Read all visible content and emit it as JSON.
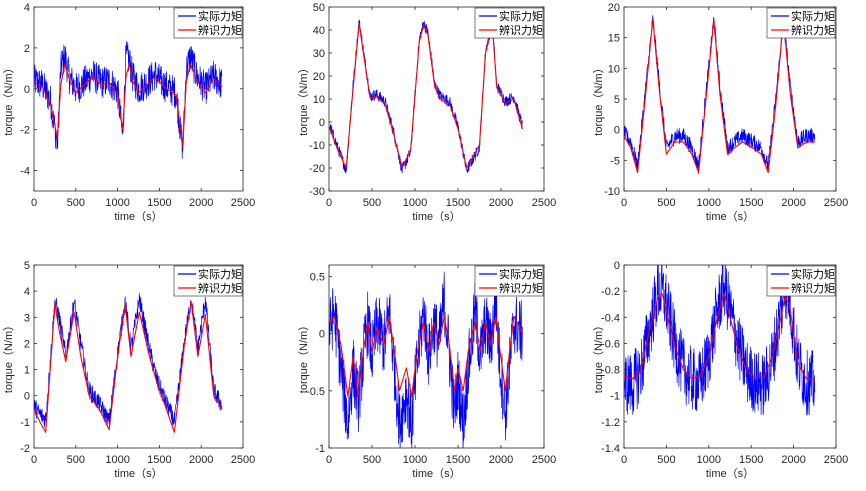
{
  "figure": {
    "series_colors": {
      "actual": "#0000ff",
      "identified": "#ff0000"
    },
    "axis_color": "#262626"
  },
  "chart_data": [
    {
      "type": "line",
      "ylabel": "torque（N/m）",
      "xlabel": "time（s）",
      "xlim": [
        0,
        2500
      ],
      "xticks": [
        0,
        500,
        1000,
        1500,
        2000,
        2500
      ],
      "ylim": [
        -5,
        4
      ],
      "yticks": [
        -4,
        -2,
        0,
        2,
        4
      ],
      "legend": [
        "实际力矩",
        "辨识力矩"
      ],
      "legend_position": "top-right",
      "series": [
        {
          "name": "辨识力矩",
          "x": [
            0,
            100,
            200,
            280,
            320,
            370,
            420,
            500,
            600,
            700,
            800,
            900,
            1000,
            1060,
            1100,
            1140,
            1180,
            1250,
            1350,
            1450,
            1550,
            1700,
            1780,
            1820,
            1870,
            1950,
            2050,
            2150,
            2250
          ],
          "values": [
            0.3,
            0.1,
            -0.8,
            -2.4,
            0.2,
            1.2,
            0.5,
            -0.2,
            0.2,
            0.6,
            0.2,
            0.3,
            -0.3,
            -2.0,
            0.6,
            1.2,
            0.4,
            -0.2,
            0.2,
            0.6,
            0.1,
            -0.3,
            -2.8,
            0.3,
            1.2,
            0.4,
            -0.2,
            0.5,
            0.1
          ]
        },
        {
          "name": "实际力矩",
          "x": [
            0,
            100,
            200,
            280,
            320,
            370,
            420,
            500,
            600,
            700,
            800,
            900,
            1000,
            1060,
            1100,
            1140,
            1180,
            1250,
            1350,
            1450,
            1550,
            1700,
            1780,
            1820,
            1870,
            1950,
            2050,
            2150,
            2250
          ],
          "values": [
            0.4,
            0.2,
            -0.6,
            -2.8,
            1.0,
            1.6,
            0.6,
            0.0,
            0.3,
            0.7,
            0.3,
            0.4,
            -0.1,
            -2.4,
            1.6,
            1.4,
            0.6,
            0.0,
            0.3,
            0.7,
            0.2,
            -0.2,
            -3.0,
            0.9,
            1.6,
            0.6,
            0.0,
            0.6,
            0.2
          ],
          "noise": 0.8
        }
      ]
    },
    {
      "type": "line",
      "ylabel": "torque（N/m）",
      "xlabel": "time（s）",
      "xlim": [
        0,
        2500
      ],
      "xticks": [
        0,
        500,
        1000,
        1500,
        2000,
        2500
      ],
      "ylim": [
        -30,
        50
      ],
      "yticks": [
        -30,
        -20,
        -10,
        0,
        10,
        20,
        30,
        40,
        50
      ],
      "legend": [
        "实际力矩",
        "辨识力矩"
      ],
      "legend_position": "top-right",
      "series": [
        {
          "name": "辨识力矩",
          "x": [
            0,
            100,
            200,
            270,
            350,
            420,
            480,
            550,
            650,
            750,
            850,
            950,
            1050,
            1100,
            1150,
            1230,
            1300,
            1400,
            1500,
            1600,
            1750,
            1820,
            1900,
            1950,
            2050,
            2150,
            2250
          ],
          "values": [
            -2,
            -12,
            -20,
            10,
            43,
            25,
            10,
            11,
            8,
            -5,
            -20,
            -12,
            35,
            42,
            38,
            15,
            10,
            8,
            -3,
            -20,
            -10,
            30,
            42,
            15,
            8,
            10,
            -3
          ]
        },
        {
          "name": "实际力矩",
          "x": [
            0,
            100,
            200,
            270,
            350,
            420,
            480,
            550,
            650,
            750,
            850,
            950,
            1050,
            1100,
            1150,
            1230,
            1300,
            1400,
            1500,
            1600,
            1750,
            1820,
            1900,
            1950,
            2050,
            2150,
            2250
          ],
          "values": [
            -1,
            -11,
            -21,
            12,
            44,
            26,
            11,
            12,
            9,
            -4,
            -21,
            -13,
            36,
            43,
            39,
            16,
            11,
            9,
            -2,
            -21,
            -11,
            31,
            43,
            16,
            9,
            11,
            -2
          ],
          "noise": 2.5
        }
      ]
    },
    {
      "type": "line",
      "ylabel": "torque（N/m）",
      "xlabel": "time（s）",
      "xlim": [
        0,
        2500
      ],
      "xticks": [
        0,
        500,
        1000,
        1500,
        2000,
        2500
      ],
      "ylim": [
        -10,
        20
      ],
      "yticks": [
        -10,
        -5,
        0,
        5,
        10,
        15,
        20
      ],
      "legend": [
        "实际力矩",
        "辨识力矩"
      ],
      "legend_position": "top-right",
      "series": [
        {
          "name": "辨识力矩",
          "x": [
            0,
            80,
            160,
            250,
            340,
            420,
            500,
            600,
            700,
            800,
            880,
            960,
            1060,
            1130,
            1220,
            1300,
            1400,
            1520,
            1620,
            1700,
            1790,
            1880,
            1960,
            2050,
            2150,
            2250
          ],
          "values": [
            -1,
            -3,
            -7,
            5,
            18,
            6,
            -4,
            -2,
            -2,
            -4,
            -7,
            4,
            18,
            6,
            -4,
            -3,
            -2,
            -3,
            -4,
            -7,
            4,
            18,
            6,
            -3,
            -2,
            -2
          ]
        },
        {
          "name": "实际力矩",
          "x": [
            0,
            80,
            160,
            250,
            340,
            420,
            500,
            600,
            700,
            800,
            880,
            960,
            1060,
            1130,
            1220,
            1300,
            1400,
            1520,
            1620,
            1700,
            1790,
            1880,
            1960,
            2050,
            2150,
            2250
          ],
          "values": [
            -0.5,
            -2,
            -6,
            6,
            18,
            7,
            -3,
            -1,
            -1,
            -3,
            -6,
            5,
            18,
            7,
            -3,
            -2,
            -1,
            -2,
            -3,
            -6,
            5,
            18,
            7,
            -2,
            -1,
            -1
          ],
          "noise": 1.3
        }
      ]
    },
    {
      "type": "line",
      "ylabel": "torque（N/m）",
      "xlabel": "time（s）",
      "xlim": [
        0,
        2500
      ],
      "xticks": [
        0,
        500,
        1000,
        1500,
        2000,
        2500
      ],
      "ylim": [
        -2,
        5
      ],
      "yticks": [
        -2,
        -1,
        0,
        1,
        2,
        3,
        4,
        5
      ],
      "legend": [
        "实际力矩",
        "辨识力矩"
      ],
      "legend_position": "top-right",
      "series": [
        {
          "name": "辨识力矩",
          "x": [
            0,
            70,
            140,
            250,
            300,
            380,
            480,
            560,
            660,
            780,
            900,
            1000,
            1090,
            1160,
            1260,
            1380,
            1470,
            1560,
            1680,
            1800,
            1880,
            1960,
            2050,
            2150,
            2250
          ],
          "values": [
            -0.5,
            -1.0,
            -1.4,
            3.5,
            2.5,
            1.3,
            3.2,
            1.5,
            0.0,
            -0.5,
            -1.3,
            1.5,
            3.5,
            1.5,
            3.2,
            1.5,
            0.5,
            -0.3,
            -1.4,
            2.0,
            3.6,
            1.5,
            3.1,
            0.0,
            -0.5
          ]
        },
        {
          "name": "实际力矩",
          "x": [
            0,
            70,
            140,
            250,
            300,
            380,
            480,
            560,
            660,
            780,
            900,
            1000,
            1090,
            1160,
            1260,
            1380,
            1470,
            1560,
            1680,
            1800,
            1880,
            1960,
            2050,
            2150,
            2250
          ],
          "values": [
            -0.4,
            -0.7,
            -0.9,
            3.6,
            3.0,
            1.5,
            3.6,
            2.0,
            0.2,
            -0.3,
            -1.0,
            1.6,
            3.6,
            1.8,
            3.7,
            1.8,
            0.6,
            -0.1,
            -1.0,
            2.1,
            3.7,
            1.8,
            3.7,
            0.2,
            -0.4
          ],
          "noise": 0.35
        }
      ]
    },
    {
      "type": "line",
      "ylabel": "torque（N/m）",
      "xlabel": "time（s）",
      "xlim": [
        0,
        2500
      ],
      "xticks": [
        0,
        500,
        1000,
        1500,
        2000,
        2500
      ],
      "ylim": [
        -1,
        0.6
      ],
      "yticks": [
        -1,
        -0.5,
        0,
        0.5
      ],
      "legend": [
        "实际力矩",
        "辨识力矩"
      ],
      "legend_position": "top-right",
      "series": [
        {
          "name": "辨识力矩",
          "x": [
            0,
            60,
            140,
            220,
            280,
            340,
            400,
            450,
            500,
            560,
            640,
            700,
            760,
            820,
            900,
            960,
            1020,
            1100,
            1160,
            1220,
            1280,
            1340,
            1400,
            1460,
            1500,
            1560,
            1620,
            1700,
            1760,
            1820,
            1880,
            1940,
            1980,
            2050,
            2100,
            2150,
            2250
          ],
          "values": [
            0.1,
            0.15,
            -0.1,
            -0.55,
            -0.2,
            -0.55,
            -0.15,
            0.1,
            -0.15,
            0.05,
            -0.1,
            0.15,
            -0.15,
            -0.5,
            -0.3,
            -0.55,
            -0.2,
            0.1,
            -0.15,
            0.1,
            -0.1,
            0.15,
            -0.1,
            -0.5,
            -0.3,
            -0.5,
            -0.15,
            0.1,
            -0.15,
            0.1,
            -0.1,
            0.15,
            -0.1,
            -0.5,
            -0.15,
            0.15,
            0.0
          ]
        },
        {
          "name": "实际力矩",
          "x": [
            0,
            60,
            140,
            220,
            280,
            340,
            400,
            450,
            500,
            560,
            640,
            700,
            760,
            820,
            900,
            960,
            1020,
            1100,
            1160,
            1220,
            1280,
            1340,
            1400,
            1460,
            1500,
            1560,
            1620,
            1700,
            1760,
            1820,
            1880,
            1940,
            1980,
            2050,
            2100,
            2150,
            2250
          ],
          "values": [
            0.0,
            0.2,
            -0.3,
            -0.8,
            -0.3,
            -0.6,
            -0.2,
            0.1,
            -0.2,
            0.1,
            -0.1,
            0.2,
            -0.3,
            -0.8,
            -0.5,
            -0.8,
            -0.3,
            0.2,
            -0.2,
            0.1,
            -0.1,
            0.3,
            -0.2,
            -0.7,
            -0.4,
            -0.8,
            -0.3,
            0.2,
            -0.2,
            0.1,
            -0.1,
            0.3,
            -0.2,
            -0.7,
            -0.3,
            0.1,
            0.0
          ],
          "noise": 0.28
        }
      ]
    },
    {
      "type": "line",
      "ylabel": "torque（N/m）",
      "xlabel": "time（s）",
      "xlim": [
        0,
        2500
      ],
      "xticks": [
        0,
        500,
        1000,
        1500,
        2000,
        2500
      ],
      "ylim": [
        -1.4,
        0
      ],
      "yticks": [
        -1.4,
        -1.2,
        -1,
        -0.8,
        -0.6,
        -0.4,
        -0.2,
        0
      ],
      "legend": [
        "实际力矩",
        "辨识力矩"
      ],
      "legend_position": "top-right",
      "series": [
        {
          "name": "辨识力矩",
          "x": [
            0,
            100,
            200,
            300,
            400,
            450,
            500,
            600,
            700,
            800,
            900,
            1000,
            1100,
            1180,
            1250,
            1350,
            1450,
            1550,
            1650,
            1750,
            1850,
            1900,
            1950,
            2050,
            2150,
            2250
          ],
          "values": [
            -0.85,
            -0.87,
            -0.8,
            -0.5,
            -0.25,
            -0.22,
            -0.35,
            -0.62,
            -0.8,
            -0.87,
            -0.85,
            -0.7,
            -0.4,
            -0.22,
            -0.4,
            -0.65,
            -0.82,
            -0.86,
            -0.86,
            -0.7,
            -0.4,
            -0.24,
            -0.3,
            -0.75,
            -0.87,
            -0.88
          ]
        },
        {
          "name": "实际力矩",
          "x": [
            0,
            100,
            200,
            300,
            400,
            450,
            500,
            600,
            700,
            800,
            900,
            1000,
            1100,
            1180,
            1250,
            1350,
            1450,
            1550,
            1650,
            1750,
            1850,
            1900,
            1950,
            2050,
            2150,
            2250
          ],
          "values": [
            -0.9,
            -0.92,
            -0.8,
            -0.5,
            -0.2,
            -0.2,
            -0.3,
            -0.6,
            -0.8,
            -0.88,
            -0.9,
            -0.7,
            -0.35,
            -0.15,
            -0.35,
            -0.62,
            -0.82,
            -0.9,
            -0.92,
            -0.72,
            -0.35,
            -0.15,
            -0.25,
            -0.75,
            -0.9,
            -0.9
          ],
          "noise": 0.25
        }
      ]
    }
  ]
}
